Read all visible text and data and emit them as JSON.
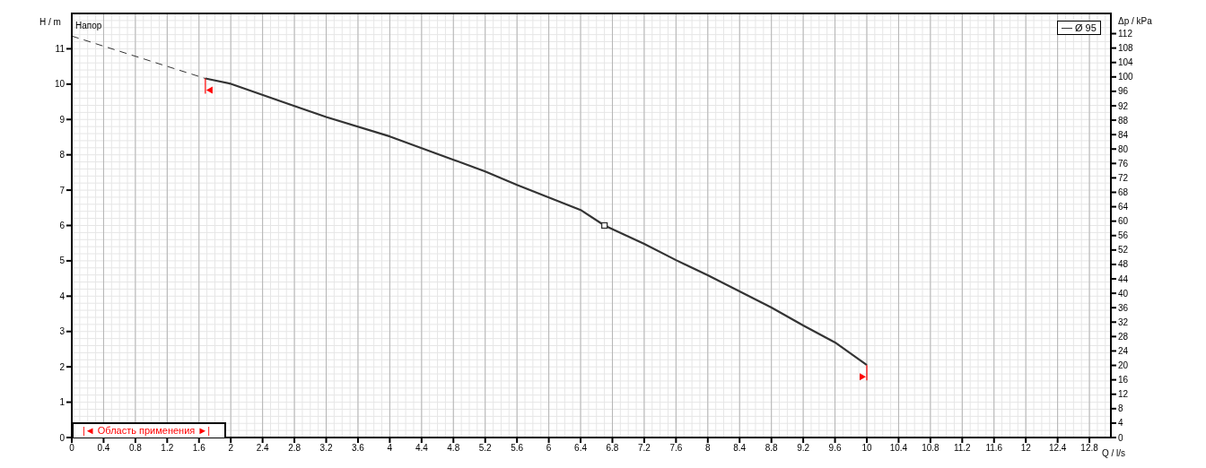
{
  "chart_data": {
    "type": "line",
    "xlabel": "Q / l/s",
    "ylabel": "H / m",
    "y2label": "Δp / kPa",
    "annotations": [
      "Напор",
      "|◄ Область применения ►|"
    ],
    "xlim": [
      0,
      13.07
    ],
    "xticks": [
      0,
      0.4,
      0.8,
      1.2,
      1.6,
      2,
      2.4,
      2.8,
      3.2,
      3.6,
      4,
      4.4,
      4.8,
      5.2,
      5.6,
      6,
      6.4,
      6.8,
      7.2,
      7.6,
      8,
      8.4,
      8.8,
      9.2,
      9.6,
      10,
      10.4,
      10.8,
      11.2,
      11.6,
      12,
      12.4,
      12.8
    ],
    "ylim": [
      0,
      12
    ],
    "yticks": [
      0,
      1,
      2,
      3,
      4,
      5,
      6,
      7,
      8,
      9,
      10,
      11
    ],
    "y2lim": [
      0,
      117.6
    ],
    "y2ticks": [
      0,
      4,
      8,
      12,
      16,
      20,
      24,
      28,
      32,
      36,
      40,
      44,
      48,
      52,
      56,
      60,
      64,
      68,
      72,
      76,
      80,
      84,
      88,
      92,
      96,
      100,
      104,
      108,
      112
    ],
    "grid": true,
    "legend": "top right",
    "marker": "none",
    "series": [
      {
        "line_style": "dashed",
        "color": "#333333",
        "x": [
          0,
          1.68
        ],
        "values": [
          11.36,
          10.16
        ]
      },
      {
        "name": "Ø 95",
        "line_style": "solid",
        "color": "#333333",
        "x": [
          1.68,
          2,
          2.8,
          3.2,
          4,
          4.8,
          5.2,
          5.6,
          6.4,
          6.7,
          7.2,
          7.6,
          8,
          8.8,
          9.2,
          9.6,
          10
        ],
        "values": [
          10.16,
          10.01,
          9.38,
          9.07,
          8.52,
          7.86,
          7.53,
          7.15,
          6.44,
          6.0,
          5.48,
          5.02,
          4.59,
          3.68,
          3.17,
          2.69,
          2.05
        ]
      },
      {
        "type": "scatter",
        "marker": "square",
        "color": "#333333",
        "x": [
          6.7
        ],
        "values": [
          6.0
        ]
      }
    ]
  }
}
